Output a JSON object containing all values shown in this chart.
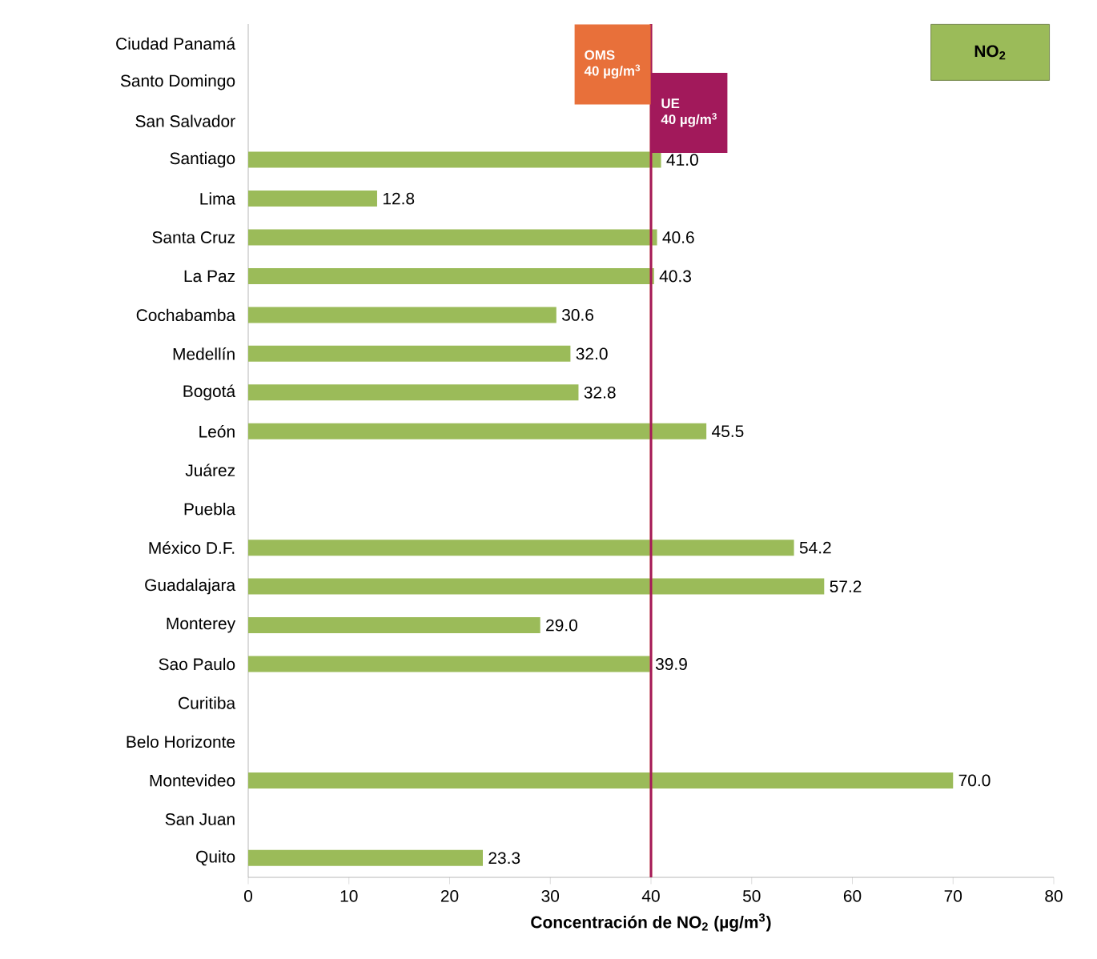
{
  "chart_data": {
    "type": "bar",
    "orientation": "horizontal",
    "title": "NO$_{2}$",
    "xlabel": "Concentración de NO$_{2}$ (µg/m$^{3}$)",
    "categories": [
      "Ciudad Panamá",
      "Santo Domingo",
      "San Salvador",
      "Santiago",
      "Lima",
      "Santa Cruz",
      "La Paz",
      "Cochabamba",
      "Medellín",
      "Bogotá",
      "León",
      "Juárez",
      "Puebla",
      "México D.F.",
      "Guadalajara",
      "Monterey",
      "Sao Paulo",
      "Curitiba",
      "Belo Horizonte",
      "Montevideo",
      "San Juan",
      "Quito"
    ],
    "values": [
      null,
      null,
      null,
      41.0,
      12.8,
      40.6,
      40.3,
      30.6,
      32.0,
      32.8,
      45.5,
      null,
      null,
      54.2,
      57.2,
      29.0,
      39.9,
      null,
      null,
      70.0,
      null,
      23.3
    ],
    "value_labels": [
      null,
      null,
      null,
      "41.0",
      "12.8",
      "40.6",
      "40.3",
      "30.6",
      "32.0",
      "32.8",
      "45.5",
      null,
      null,
      "54.2",
      "57.2",
      "29.0",
      "39.9",
      null,
      null,
      "70.0",
      null,
      "23.3"
    ],
    "color": "#9bbb59",
    "xlim": [
      0,
      80
    ],
    "xticks": [
      0,
      10,
      20,
      30,
      40,
      50,
      60,
      70,
      80
    ],
    "ref_lines": [
      {
        "axis": "x",
        "value": 40,
        "label": "OMS",
        "color": "#e8703a"
      },
      {
        "axis": "x",
        "value": 40,
        "label": "UE",
        "color": "#a2195b"
      }
    ],
    "annotations": [
      "40 µg/m$^{3}$",
      "40 µg/m$^{3}$"
    ]
  }
}
